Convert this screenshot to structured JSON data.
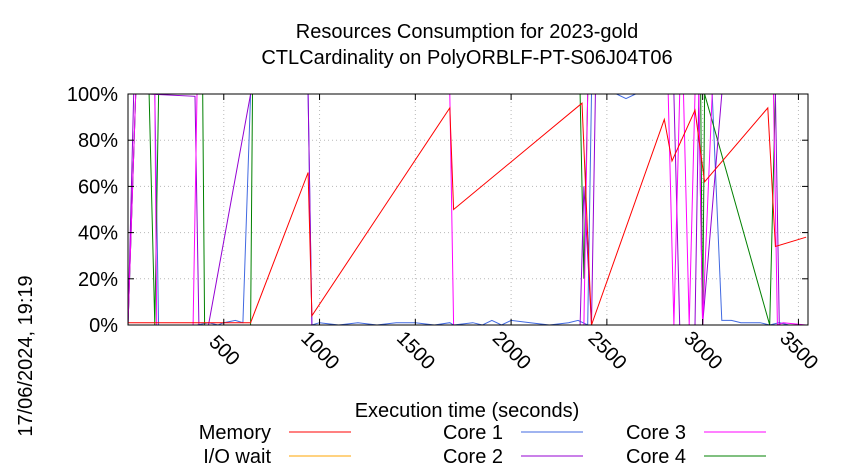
{
  "chart_data": {
    "type": "line",
    "title": "Resources Consumption for 2023-gold",
    "subtitle": "CTLCardinality on PolyORBLF-PT-S06J04T06",
    "xlabel": "Execution time (seconds)",
    "ylabel": "",
    "side_label": "17/06/2024, 19:19",
    "xlim": [
      0,
      3550
    ],
    "ylim": [
      0,
      100
    ],
    "x_ticks": [
      500,
      1000,
      1500,
      2000,
      2500,
      3000,
      3500
    ],
    "y_ticks": [
      0,
      20,
      40,
      60,
      80,
      100
    ],
    "y_tick_labels": [
      "0%",
      "20%",
      "40%",
      "60%",
      "80%",
      "100%"
    ],
    "grid": true,
    "legend_position": "bottom",
    "series": [
      {
        "name": "Memory",
        "color": "#ff0000",
        "x": [
          0,
          20,
          600,
          640,
          940,
          960,
          1680,
          1700,
          2370,
          2420,
          2800,
          2840,
          2960,
          3010,
          3340,
          3380,
          3540
        ],
        "y": [
          1,
          1,
          1,
          1,
          66,
          4,
          94,
          50,
          96,
          0,
          89,
          71,
          93,
          62,
          94,
          34,
          38
        ]
      },
      {
        "name": "I/O wait",
        "color": "#ffa500",
        "x": [
          0,
          3540
        ],
        "y": [
          0,
          0
        ]
      },
      {
        "name": "Core 1",
        "color": "#4169e1",
        "x": [
          0,
          40,
          60,
          140,
          160,
          360,
          420,
          470,
          500,
          560,
          600,
          640,
          940,
          960,
          1000,
          1100,
          1200,
          1300,
          1400,
          1500,
          1600,
          1680,
          1700,
          1800,
          1850,
          1900,
          1950,
          2000,
          2100,
          2200,
          2300,
          2350,
          2400,
          2420,
          2440,
          2500,
          2550,
          2600,
          2650,
          2700,
          2800,
          2900,
          2950,
          3000,
          3050,
          3100,
          3150,
          3200,
          3300,
          3350,
          3400,
          3450,
          3540
        ],
        "y": [
          0,
          100,
          100,
          100,
          0,
          0,
          1,
          0,
          1,
          2,
          1,
          100,
          100,
          0,
          1,
          0,
          1,
          0,
          1,
          1,
          0,
          1,
          0,
          1,
          0,
          2,
          0,
          2,
          1,
          0,
          1,
          2,
          0,
          100,
          100,
          100,
          100,
          98,
          100,
          100,
          100,
          100,
          100,
          100,
          100,
          2,
          2,
          1,
          1,
          0,
          1,
          0,
          0
        ]
      },
      {
        "name": "Core 2",
        "color": "#9400d3",
        "x": [
          0,
          30,
          60,
          100,
          350,
          370,
          420,
          640,
          940,
          960,
          1680,
          1700,
          2360,
          2380,
          2420,
          2440,
          2820,
          2850,
          2880,
          2960,
          2980,
          3000,
          3100,
          3380,
          3400,
          3540
        ],
        "y": [
          0,
          100,
          100,
          100,
          99,
          0,
          0,
          100,
          100,
          0,
          0,
          0,
          0,
          60,
          0,
          100,
          100,
          100,
          0,
          0,
          100,
          0,
          100,
          100,
          0,
          0
        ]
      },
      {
        "name": "Core 3",
        "color": "#ff00ff",
        "x": [
          0,
          40,
          80,
          140,
          150,
          340,
          360,
          380,
          420,
          960,
          980,
          1650,
          1680,
          1700,
          2360,
          2380,
          2400,
          2440,
          2780,
          2820,
          2850,
          2880,
          2900,
          2930,
          2960,
          2980,
          3000,
          3050,
          3370,
          3390,
          3420,
          3540
        ],
        "y": [
          0,
          100,
          100,
          100,
          0,
          0,
          100,
          100,
          100,
          100,
          100,
          100,
          100,
          0,
          0,
          0,
          100,
          100,
          100,
          100,
          0,
          100,
          100,
          0,
          100,
          100,
          0,
          100,
          100,
          0,
          1,
          0
        ]
      },
      {
        "name": "Core 4",
        "color": "#008000",
        "x": [
          0,
          40,
          80,
          110,
          140,
          160,
          200,
          390,
          400,
          640,
          650,
          680,
          960,
          980,
          2360,
          2380,
          2400,
          2800,
          2830,
          2990,
          3000,
          3010,
          3350,
          3380,
          3540
        ],
        "y": [
          0,
          100,
          100,
          100,
          0,
          100,
          100,
          100,
          0,
          0,
          100,
          100,
          100,
          100,
          100,
          20,
          100,
          100,
          100,
          100,
          0,
          100,
          0,
          100,
          100
        ]
      }
    ]
  }
}
